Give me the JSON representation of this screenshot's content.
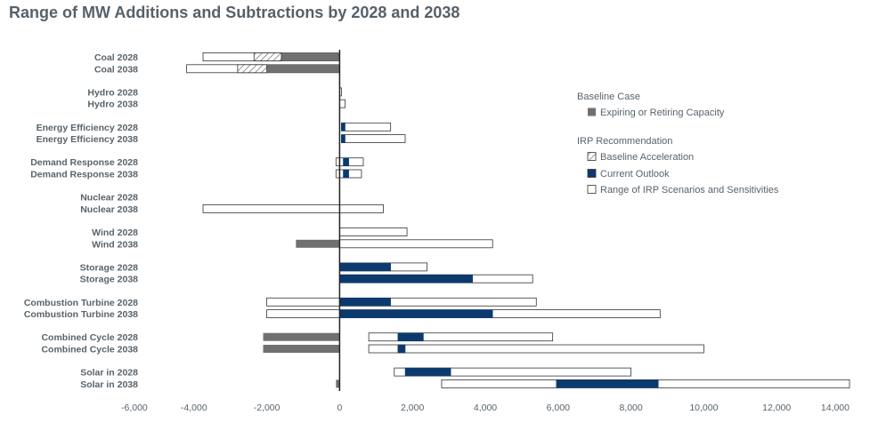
{
  "chart_data": {
    "type": "bar",
    "title": "Range of MW Additions and Subtractions by 2028 and 2038",
    "xlabel": "",
    "ylabel": "",
    "xlim": [
      -6000,
      14000
    ],
    "xticks": [
      -6000,
      -4000,
      -2000,
      0,
      2000,
      4000,
      6000,
      8000,
      10000,
      12000,
      14000
    ],
    "xtick_labels": [
      "-6,000",
      "-4,000",
      "-2,000",
      "0",
      "2,000",
      "4,000",
      "6,000",
      "8,000",
      "10,000",
      "12,000",
      "14,000"
    ],
    "grid": false,
    "legend_position": "right",
    "legend": {
      "baseline_heading": "Baseline Case",
      "irp_heading": "IRP Recommendation",
      "items": [
        {
          "key": "retiring",
          "label": "Expiring or Retiring Capacity"
        },
        {
          "key": "acceleration",
          "label": "Baseline Acceleration"
        },
        {
          "key": "current",
          "label": "Current Outlook"
        },
        {
          "key": "range",
          "label": "Range of IRP Scenarios and Sensitivities"
        }
      ]
    },
    "colors": {
      "retiring": "#707070",
      "current": "#0d3a6e",
      "range_fill": "#ffffff",
      "outline": "#333333",
      "axis": "#222222",
      "hatch": "#555555"
    },
    "categories": [
      {
        "label": "Coal 2028",
        "range": [
          -3750,
          0
        ],
        "retiring": [
          -1600,
          0
        ],
        "acceleration": [
          -2350,
          -1600
        ]
      },
      {
        "label": "Coal 2038",
        "range": [
          -4200,
          0
        ],
        "retiring": [
          -2000,
          0
        ],
        "acceleration": [
          -2800,
          -2000
        ]
      },
      {
        "label": "Hydro 2028",
        "range": [
          0,
          50
        ]
      },
      {
        "label": "Hydro 2038",
        "range": [
          0,
          150
        ]
      },
      {
        "label": "Energy Efficiency 2028",
        "range": [
          50,
          1400
        ],
        "current": [
          50,
          150
        ]
      },
      {
        "label": "Energy Efficiency 2038",
        "range": [
          50,
          1800
        ],
        "current": [
          50,
          150
        ]
      },
      {
        "label": "Demand Response 2028",
        "range": [
          -100,
          650
        ],
        "current": [
          100,
          250
        ]
      },
      {
        "label": "Demand Response 2038",
        "range": [
          -100,
          600
        ],
        "current": [
          100,
          250
        ]
      },
      {
        "label": "Nuclear 2028",
        "range": null
      },
      {
        "label": "Nuclear 2038",
        "range": [
          -3750,
          1200
        ]
      },
      {
        "label": "Wind 2028",
        "range": [
          0,
          1850
        ]
      },
      {
        "label": "Wind 2038",
        "range": [
          0,
          4200
        ],
        "retiring": [
          -1200,
          0
        ]
      },
      {
        "label": "Storage 2028",
        "range": [
          0,
          2400
        ],
        "current": [
          0,
          1400
        ]
      },
      {
        "label": "Storage 2038",
        "range": [
          0,
          5300
        ],
        "current": [
          0,
          3650
        ]
      },
      {
        "label": "Combustion Turbine 2028",
        "range": [
          -2000,
          5400
        ],
        "current": [
          0,
          1400
        ]
      },
      {
        "label": "Combustion Turbine 2038",
        "range": [
          -2000,
          8800
        ],
        "current": [
          0,
          4200
        ]
      },
      {
        "label": "Combined Cycle 2028",
        "range": [
          800,
          5850
        ],
        "current": [
          1600,
          2300
        ],
        "retiring": [
          -2100,
          0
        ]
      },
      {
        "label": "Combined Cycle 2038",
        "range": [
          800,
          10000
        ],
        "current": [
          1600,
          1800
        ],
        "retiring": [
          -2100,
          0
        ]
      },
      {
        "label": "Solar in  2028",
        "range": [
          1500,
          8000
        ],
        "current": [
          1800,
          3050
        ]
      },
      {
        "label": "Solar in  2038",
        "range": [
          2800,
          14000
        ],
        "current": [
          5950,
          8750
        ],
        "retiring": [
          -100,
          0
        ]
      }
    ]
  }
}
